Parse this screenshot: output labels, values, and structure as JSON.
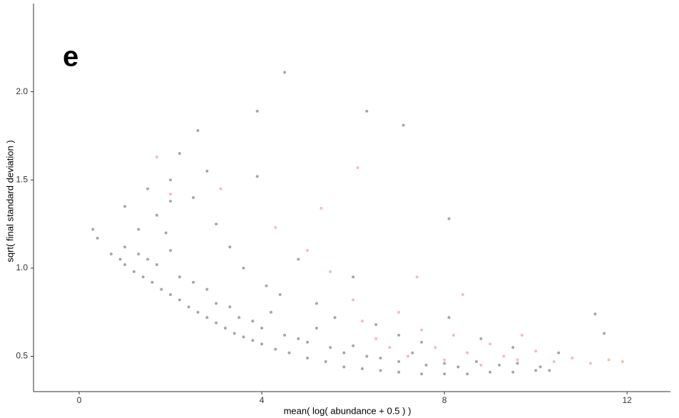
{
  "chart_data": {
    "type": "scatter",
    "annotation": "e",
    "x_label": "mean( log( abundance + 0.5 ) )",
    "y_label": "sqrt( final standard deviation )",
    "xlim": [
      -1.0,
      12.95
    ],
    "ylim": [
      0.3,
      2.5
    ],
    "xticks": [
      0,
      4,
      8,
      12
    ],
    "yticks": [
      0.5,
      {
        "value": 1.0,
        "label": "1.0"
      },
      1.5,
      {
        "value": 2.0,
        "label": "2.0"
      }
    ],
    "opacity": 0.35,
    "series": [
      {
        "color": "#000000",
        "x": [
          0.7,
          0.9,
          1.0,
          1.2,
          1.4,
          1.6,
          1.8,
          2.0,
          2.2,
          2.4,
          2.6,
          2.8,
          3.0,
          3.2,
          3.4,
          3.6,
          3.8,
          4.0,
          4.3,
          4.6,
          5.0,
          5.4,
          5.8,
          6.2,
          6.6,
          7.0,
          7.5,
          8.0,
          8.5,
          9.0,
          9.5,
          10.0,
          10.3,
          1.0,
          1.3,
          1.5,
          1.7,
          1.9,
          2.0,
          2.2,
          2.5,
          2.8,
          3.0,
          3.3,
          3.5,
          3.8,
          4.0,
          4.2,
          4.5,
          4.8,
          5.0,
          5.2,
          5.5,
          5.8,
          6.0,
          6.3,
          6.6,
          7.0,
          7.3,
          7.6,
          8.0,
          8.3,
          8.7,
          9.2,
          9.6,
          10.1,
          1.0,
          1.3,
          1.5,
          1.7,
          2.0,
          2.0,
          2.2,
          2.5,
          2.8,
          3.0,
          3.3,
          3.6,
          3.9,
          4.1,
          4.4,
          4.8,
          5.2,
          5.6,
          6.0,
          6.5,
          7.0,
          7.5,
          8.1,
          8.8,
          9.5,
          10.5,
          11.3,
          0.3,
          0.4,
          4.5,
          6.3,
          7.1,
          3.9,
          2.6,
          8.1,
          11.5
        ],
        "values": [
          1.08,
          1.05,
          1.02,
          0.98,
          0.95,
          0.92,
          0.88,
          0.85,
          0.82,
          0.78,
          0.75,
          0.72,
          0.69,
          0.66,
          0.63,
          0.61,
          0.59,
          0.57,
          0.54,
          0.52,
          0.49,
          0.47,
          0.44,
          0.43,
          0.42,
          0.41,
          0.4,
          0.4,
          0.4,
          0.41,
          0.41,
          0.42,
          0.42,
          1.12,
          1.08,
          1.05,
          1.02,
          1.2,
          1.1,
          0.95,
          0.92,
          0.88,
          0.8,
          0.78,
          0.72,
          0.7,
          0.66,
          0.75,
          0.62,
          0.6,
          0.58,
          0.66,
          0.55,
          0.52,
          0.56,
          0.5,
          0.49,
          0.47,
          0.52,
          0.45,
          0.46,
          0.44,
          0.47,
          0.45,
          0.46,
          0.44,
          1.35,
          1.22,
          1.45,
          1.3,
          1.5,
          1.38,
          1.65,
          1.4,
          1.55,
          1.25,
          1.12,
          1.0,
          1.52,
          0.9,
          0.85,
          1.05,
          0.8,
          0.72,
          0.95,
          0.68,
          0.62,
          0.58,
          0.72,
          0.6,
          0.55,
          0.52,
          0.74,
          1.22,
          1.17,
          2.11,
          1.89,
          1.81,
          1.89,
          1.78,
          1.28,
          0.63
        ]
      },
      {
        "color": "#e63c3c",
        "x": [
          1.7,
          2.0,
          3.1,
          4.3,
          5.0,
          5.5,
          6.0,
          6.2,
          6.5,
          6.8,
          7.0,
          7.2,
          7.5,
          7.8,
          8.0,
          8.2,
          8.5,
          8.8,
          9.0,
          9.3,
          9.6,
          10.0,
          10.4,
          10.8,
          11.2,
          11.6,
          11.9,
          7.4,
          8.4,
          9.7,
          5.3,
          6.1
        ],
        "values": [
          1.63,
          1.42,
          1.45,
          1.23,
          1.1,
          0.98,
          0.82,
          0.7,
          0.6,
          0.55,
          0.75,
          0.5,
          0.65,
          0.55,
          0.48,
          0.62,
          0.52,
          0.45,
          0.57,
          0.5,
          0.48,
          0.53,
          0.47,
          0.49,
          0.46,
          0.48,
          0.47,
          0.95,
          0.85,
          0.62,
          1.34,
          1.57
        ]
      }
    ]
  }
}
